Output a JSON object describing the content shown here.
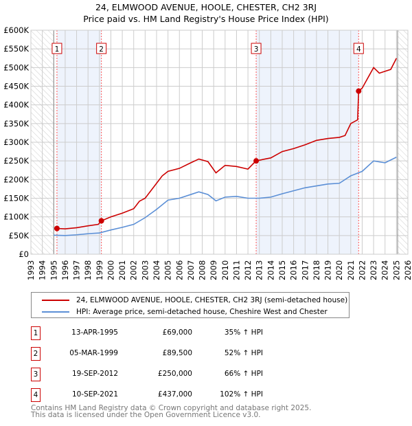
{
  "title": [
    "24, ELMWOOD AVENUE, HOOLE, CHESTER, CH2 3RJ",
    "Price paid vs. HM Land Registry's House Price Index (HPI)"
  ],
  "legend": [
    "24, ELMWOOD AVENUE, HOOLE, CHESTER, CH2 3RJ (semi-detached house)",
    "HPI: Average price, semi-detached house, Cheshire West and Chester"
  ],
  "sales": [
    {
      "n": "1",
      "date": "13-APR-1995",
      "price": "£69,000",
      "hpi": "35% ↑ HPI"
    },
    {
      "n": "2",
      "date": "05-MAR-1999",
      "price": "£89,500",
      "hpi": "52% ↑ HPI"
    },
    {
      "n": "3",
      "date": "19-SEP-2012",
      "price": "£250,000",
      "hpi": "66% ↑ HPI"
    },
    {
      "n": "4",
      "date": "10-SEP-2021",
      "price": "£437,000",
      "hpi": "102% ↑ HPI"
    }
  ],
  "footer": [
    "Contains HM Land Registry data © Crown copyright and database right 2025.",
    "This data is licensed under the Open Government Licence v3.0."
  ],
  "chart_data": {
    "type": "line",
    "xlim": [
      1993,
      2026
    ],
    "ylim": [
      0,
      600000
    ],
    "yticks": [
      0,
      50000,
      100000,
      150000,
      200000,
      250000,
      300000,
      350000,
      400000,
      450000,
      500000,
      550000,
      600000
    ],
    "ytick_labels": [
      "£0",
      "£50K",
      "£100K",
      "£150K",
      "£200K",
      "£250K",
      "£300K",
      "£350K",
      "£400K",
      "£450K",
      "£500K",
      "£550K",
      "£600K"
    ],
    "xticks": [
      "1993",
      "1994",
      "1995",
      "1996",
      "1997",
      "1998",
      "1999",
      "2000",
      "2001",
      "2002",
      "2003",
      "2004",
      "2005",
      "2006",
      "2007",
      "2008",
      "2009",
      "2010",
      "2011",
      "2012",
      "2013",
      "2014",
      "2015",
      "2016",
      "2017",
      "2018",
      "2019",
      "2020",
      "2021",
      "2022",
      "2023",
      "2024",
      "2025",
      "2026"
    ],
    "hatch_before": 1995.0,
    "hatch_after": 2025.1,
    "colors": {
      "property": "#cc0000",
      "hpi": "#5b8fd6",
      "shade": "#eef3fc"
    },
    "sale_points": [
      {
        "x": 1995.28,
        "y": 69000
      },
      {
        "x": 1999.17,
        "y": 89500
      },
      {
        "x": 2012.72,
        "y": 250000
      },
      {
        "x": 2021.69,
        "y": 437000
      }
    ],
    "series": [
      {
        "name": "property",
        "x": [
          1995.28,
          1996,
          1997,
          1998,
          1998.9,
          1999.17,
          2000,
          2001,
          2002,
          2002.5,
          2003,
          2004,
          2004.5,
          2005,
          2006,
          2007,
          2007.7,
          2008.5,
          2009.2,
          2010,
          2011,
          2012,
          2012.7,
          2013.5,
          2014,
          2015,
          2016,
          2017,
          2018,
          2019,
          2020,
          2020.5,
          2021,
          2021.6,
          2021.69,
          2022,
          2023,
          2023.5,
          2024,
          2024.5,
          2025
        ],
        "y": [
          69000,
          68000,
          71000,
          76000,
          80000,
          89500,
          100000,
          110000,
          122000,
          142000,
          150000,
          190000,
          210000,
          222000,
          230000,
          245000,
          255000,
          248000,
          218000,
          238000,
          235000,
          228000,
          250000,
          255000,
          258000,
          275000,
          283000,
          293000,
          305000,
          310000,
          313000,
          318000,
          350000,
          360000,
          437000,
          445000,
          500000,
          485000,
          490000,
          495000,
          525000
        ]
      },
      {
        "name": "hpi",
        "x": [
          1995,
          1996,
          1997,
          1998,
          1999,
          2000,
          2001,
          2002,
          2003,
          2004,
          2005,
          2006,
          2007,
          2007.7,
          2008.5,
          2009.2,
          2010,
          2011,
          2012,
          2013,
          2014,
          2015,
          2016,
          2017,
          2018,
          2019,
          2020,
          2021,
          2022,
          2023,
          2024,
          2025
        ],
        "y": [
          51000,
          50000,
          52000,
          55000,
          57000,
          65000,
          72000,
          80000,
          98000,
          120000,
          145000,
          150000,
          160000,
          167000,
          160000,
          143000,
          153000,
          155000,
          150000,
          150000,
          153000,
          162000,
          170000,
          178000,
          183000,
          188000,
          190000,
          210000,
          222000,
          250000,
          245000,
          260000
        ]
      }
    ]
  }
}
